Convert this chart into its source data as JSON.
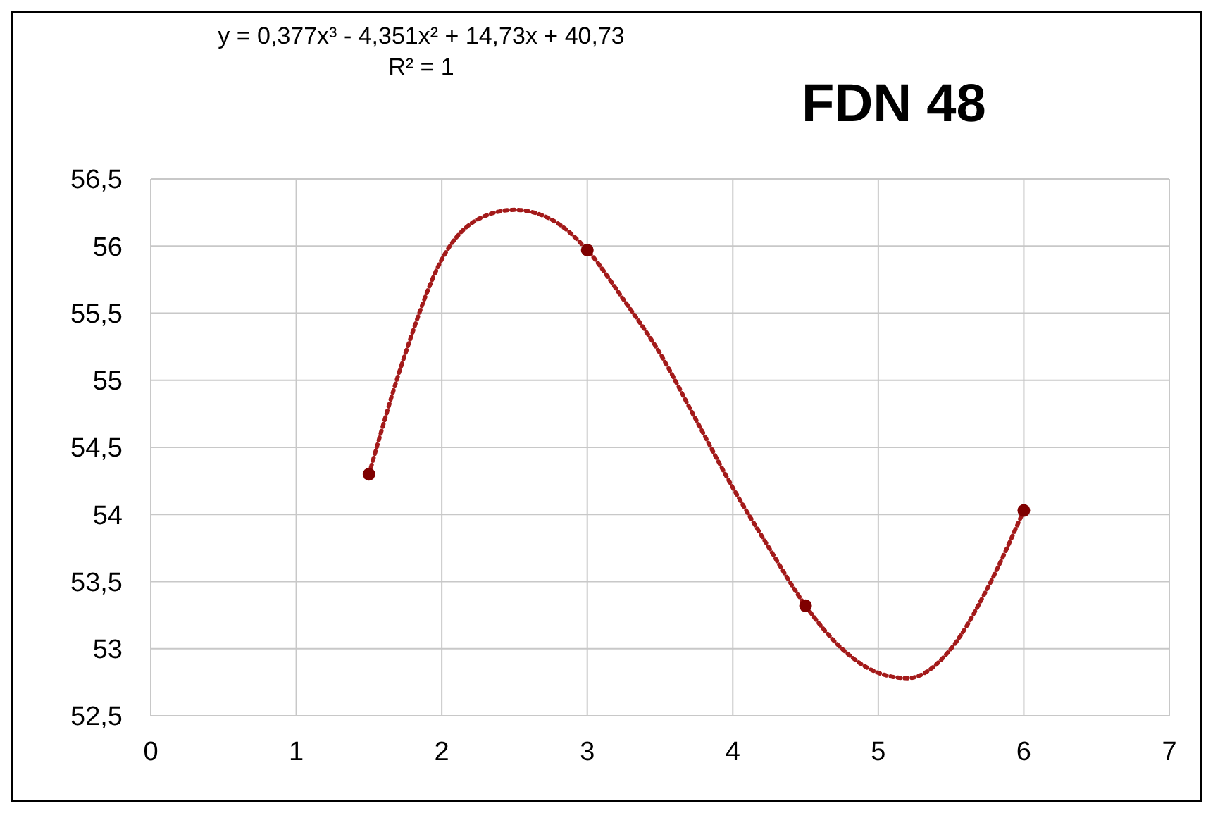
{
  "chart_data": {
    "type": "scatter",
    "title": "FDN 48",
    "annotations": [
      "y = 0,377x³ - 4,351x² + 14,73x + 40,73",
      "R² = 1"
    ],
    "series": [
      {
        "type": "scatter",
        "color": "#7f0000",
        "x": [
          1.5,
          3,
          4.5,
          6
        ],
        "values": [
          54.3,
          55.97,
          53.32,
          54.03
        ],
        "marker": "circle"
      },
      {
        "type": "line",
        "color": "#a31a1a",
        "line_style": "dotted",
        "x": [
          1.5,
          1.75,
          2,
          2.25,
          2.5,
          2.75,
          3,
          3.25,
          3.5,
          3.75,
          4,
          4.25,
          4.5,
          4.75,
          5,
          5.2,
          5.5,
          5.75,
          6
        ],
        "values": [
          54.3,
          55.2,
          55.9,
          56.2,
          56.27,
          56.2,
          55.97,
          55.6,
          55.2,
          54.7,
          54.2,
          53.75,
          53.32,
          53.0,
          52.82,
          52.78,
          53.0,
          53.45,
          54.03
        ]
      }
    ],
    "xlim": [
      0,
      7
    ],
    "xticks": [
      0,
      1,
      2,
      3,
      4,
      5,
      6,
      7
    ],
    "ylim": [
      52.5,
      56.5
    ],
    "yticks": [
      {
        "value": 52.5,
        "label": "52,5"
      },
      {
        "value": 53,
        "label": "53"
      },
      {
        "value": 53.5,
        "label": "53,5"
      },
      {
        "value": 54,
        "label": "54"
      },
      {
        "value": 54.5,
        "label": "54,5"
      },
      {
        "value": 55,
        "label": "55"
      },
      {
        "value": 55.5,
        "label": "55,5"
      },
      {
        "value": 56,
        "label": "56"
      },
      {
        "value": 56.5,
        "label": "56,5"
      }
    ],
    "grid": true
  }
}
